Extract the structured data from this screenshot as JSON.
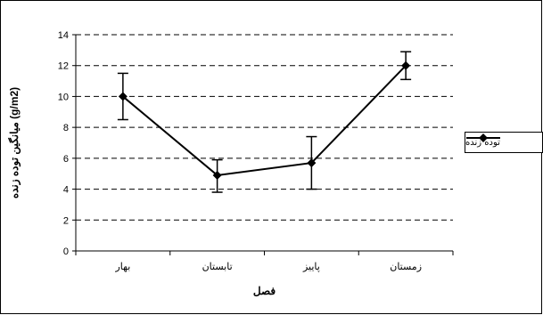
{
  "chart_data": {
    "type": "line",
    "categories": [
      "بهار",
      "تابستان",
      "پاییز",
      "زمستان"
    ],
    "series": [
      {
        "name": "توده زنده",
        "values": [
          10.0,
          4.9,
          5.7,
          12.0
        ],
        "error_low": [
          8.5,
          3.8,
          4.0,
          11.1
        ],
        "error_high": [
          11.5,
          5.9,
          7.4,
          12.9
        ],
        "color": "#000000",
        "marker": "diamond"
      }
    ],
    "title": "",
    "xlabel": "فصل",
    "ylabel": "میانگین توده زنده (g/m2)",
    "ylim": [
      0,
      14
    ],
    "yticks": [
      0,
      2,
      4,
      6,
      8,
      10,
      12,
      14
    ],
    "grid": "horizontal-dashed",
    "legend": "right"
  }
}
